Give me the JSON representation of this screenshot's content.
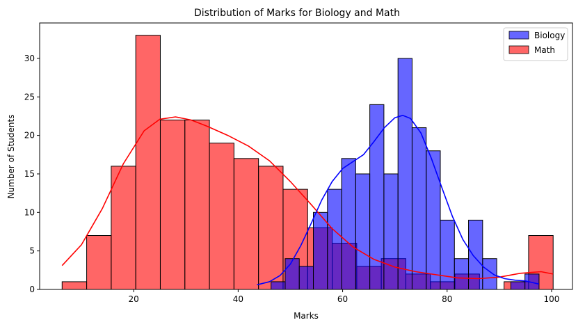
{
  "chart_data": {
    "type": "histogram",
    "title": "Distribution of Marks for Biology and Math",
    "xlabel": "Marks",
    "ylabel": "Number of Students",
    "xlim": [
      2,
      104
    ],
    "ylim": [
      0,
      34.6
    ],
    "xticks": [
      20,
      40,
      60,
      80,
      100
    ],
    "yticks": [
      0,
      5,
      10,
      15,
      20,
      25,
      30
    ],
    "legend_placement": "top-right",
    "grid": false,
    "series": [
      {
        "name": "Math",
        "color": "#ff0000",
        "bins": [
          {
            "start": 6.3,
            "end": 11.0,
            "count": 1
          },
          {
            "start": 11.0,
            "end": 15.7,
            "count": 7
          },
          {
            "start": 15.7,
            "end": 20.4,
            "count": 16
          },
          {
            "start": 20.4,
            "end": 25.1,
            "count": 33
          },
          {
            "start": 25.1,
            "end": 29.8,
            "count": 22
          },
          {
            "start": 29.8,
            "end": 34.5,
            "count": 22
          },
          {
            "start": 34.5,
            "end": 39.2,
            "count": 19
          },
          {
            "start": 39.2,
            "end": 43.9,
            "count": 17
          },
          {
            "start": 43.9,
            "end": 48.6,
            "count": 16
          },
          {
            "start": 48.6,
            "end": 53.3,
            "count": 13
          },
          {
            "start": 53.3,
            "end": 58.0,
            "count": 8
          },
          {
            "start": 58.0,
            "end": 62.7,
            "count": 6
          },
          {
            "start": 62.7,
            "end": 67.4,
            "count": 3
          },
          {
            "start": 67.4,
            "end": 72.1,
            "count": 4
          },
          {
            "start": 72.1,
            "end": 76.8,
            "count": 2
          },
          {
            "start": 76.8,
            "end": 81.5,
            "count": 1
          },
          {
            "start": 81.5,
            "end": 86.2,
            "count": 2
          },
          {
            "start": 86.2,
            "end": 90.9,
            "count": 0
          },
          {
            "start": 90.9,
            "end": 95.6,
            "count": 1
          },
          {
            "start": 95.6,
            "end": 100.3,
            "count": 7
          }
        ],
        "kde": [
          [
            6.3,
            3.1
          ],
          [
            10,
            5.8
          ],
          [
            14,
            10.5
          ],
          [
            18,
            16.3
          ],
          [
            22,
            20.6
          ],
          [
            25,
            22.1
          ],
          [
            28,
            22.4
          ],
          [
            31,
            22.0
          ],
          [
            34,
            21.2
          ],
          [
            38,
            20.0
          ],
          [
            42,
            18.6
          ],
          [
            46,
            16.7
          ],
          [
            50,
            14.0
          ],
          [
            54,
            11.0
          ],
          [
            58,
            7.9
          ],
          [
            62,
            5.5
          ],
          [
            66,
            3.9
          ],
          [
            70,
            2.9
          ],
          [
            74,
            2.3
          ],
          [
            78,
            1.9
          ],
          [
            82,
            1.5
          ],
          [
            86,
            1.4
          ],
          [
            90,
            1.6
          ],
          [
            94,
            2.1
          ],
          [
            98,
            2.3
          ],
          [
            100.3,
            2.0
          ]
        ]
      },
      {
        "name": "Biology",
        "color": "#0000ff",
        "bins": [
          {
            "start": 43.6,
            "end": 46.3,
            "count": 0
          },
          {
            "start": 46.3,
            "end": 49.0,
            "count": 1
          },
          {
            "start": 49.0,
            "end": 51.7,
            "count": 4
          },
          {
            "start": 51.7,
            "end": 54.4,
            "count": 3
          },
          {
            "start": 54.4,
            "end": 57.1,
            "count": 10
          },
          {
            "start": 57.1,
            "end": 59.8,
            "count": 13
          },
          {
            "start": 59.8,
            "end": 62.5,
            "count": 17
          },
          {
            "start": 62.5,
            "end": 65.2,
            "count": 15
          },
          {
            "start": 65.2,
            "end": 67.9,
            "count": 24
          },
          {
            "start": 67.9,
            "end": 70.6,
            "count": 15
          },
          {
            "start": 70.6,
            "end": 73.3,
            "count": 30
          },
          {
            "start": 73.3,
            "end": 76.0,
            "count": 21
          },
          {
            "start": 76.0,
            "end": 78.7,
            "count": 18
          },
          {
            "start": 78.7,
            "end": 81.4,
            "count": 9
          },
          {
            "start": 81.4,
            "end": 84.1,
            "count": 4
          },
          {
            "start": 84.1,
            "end": 86.8,
            "count": 9
          },
          {
            "start": 86.8,
            "end": 89.5,
            "count": 4
          },
          {
            "start": 89.5,
            "end": 92.2,
            "count": 0
          },
          {
            "start": 92.2,
            "end": 94.9,
            "count": 1
          },
          {
            "start": 94.9,
            "end": 97.6,
            "count": 2
          }
        ],
        "kde": [
          [
            43.6,
            0.6
          ],
          [
            46,
            1.0
          ],
          [
            48,
            1.8
          ],
          [
            50,
            3.3
          ],
          [
            52,
            5.7
          ],
          [
            54,
            8.6
          ],
          [
            56,
            11.6
          ],
          [
            58,
            14.0
          ],
          [
            60,
            15.7
          ],
          [
            62,
            16.6
          ],
          [
            64,
            17.5
          ],
          [
            66,
            19.2
          ],
          [
            68,
            21.0
          ],
          [
            70,
            22.3
          ],
          [
            71.5,
            22.6
          ],
          [
            73,
            22.2
          ],
          [
            75,
            20.3
          ],
          [
            77,
            17.0
          ],
          [
            79,
            13.2
          ],
          [
            81,
            9.5
          ],
          [
            83,
            6.5
          ],
          [
            85,
            4.4
          ],
          [
            87,
            2.9
          ],
          [
            89,
            1.9
          ],
          [
            91,
            1.4
          ],
          [
            93,
            1.2
          ],
          [
            95,
            1.1
          ],
          [
            97.6,
            0.7
          ]
        ]
      }
    ]
  }
}
